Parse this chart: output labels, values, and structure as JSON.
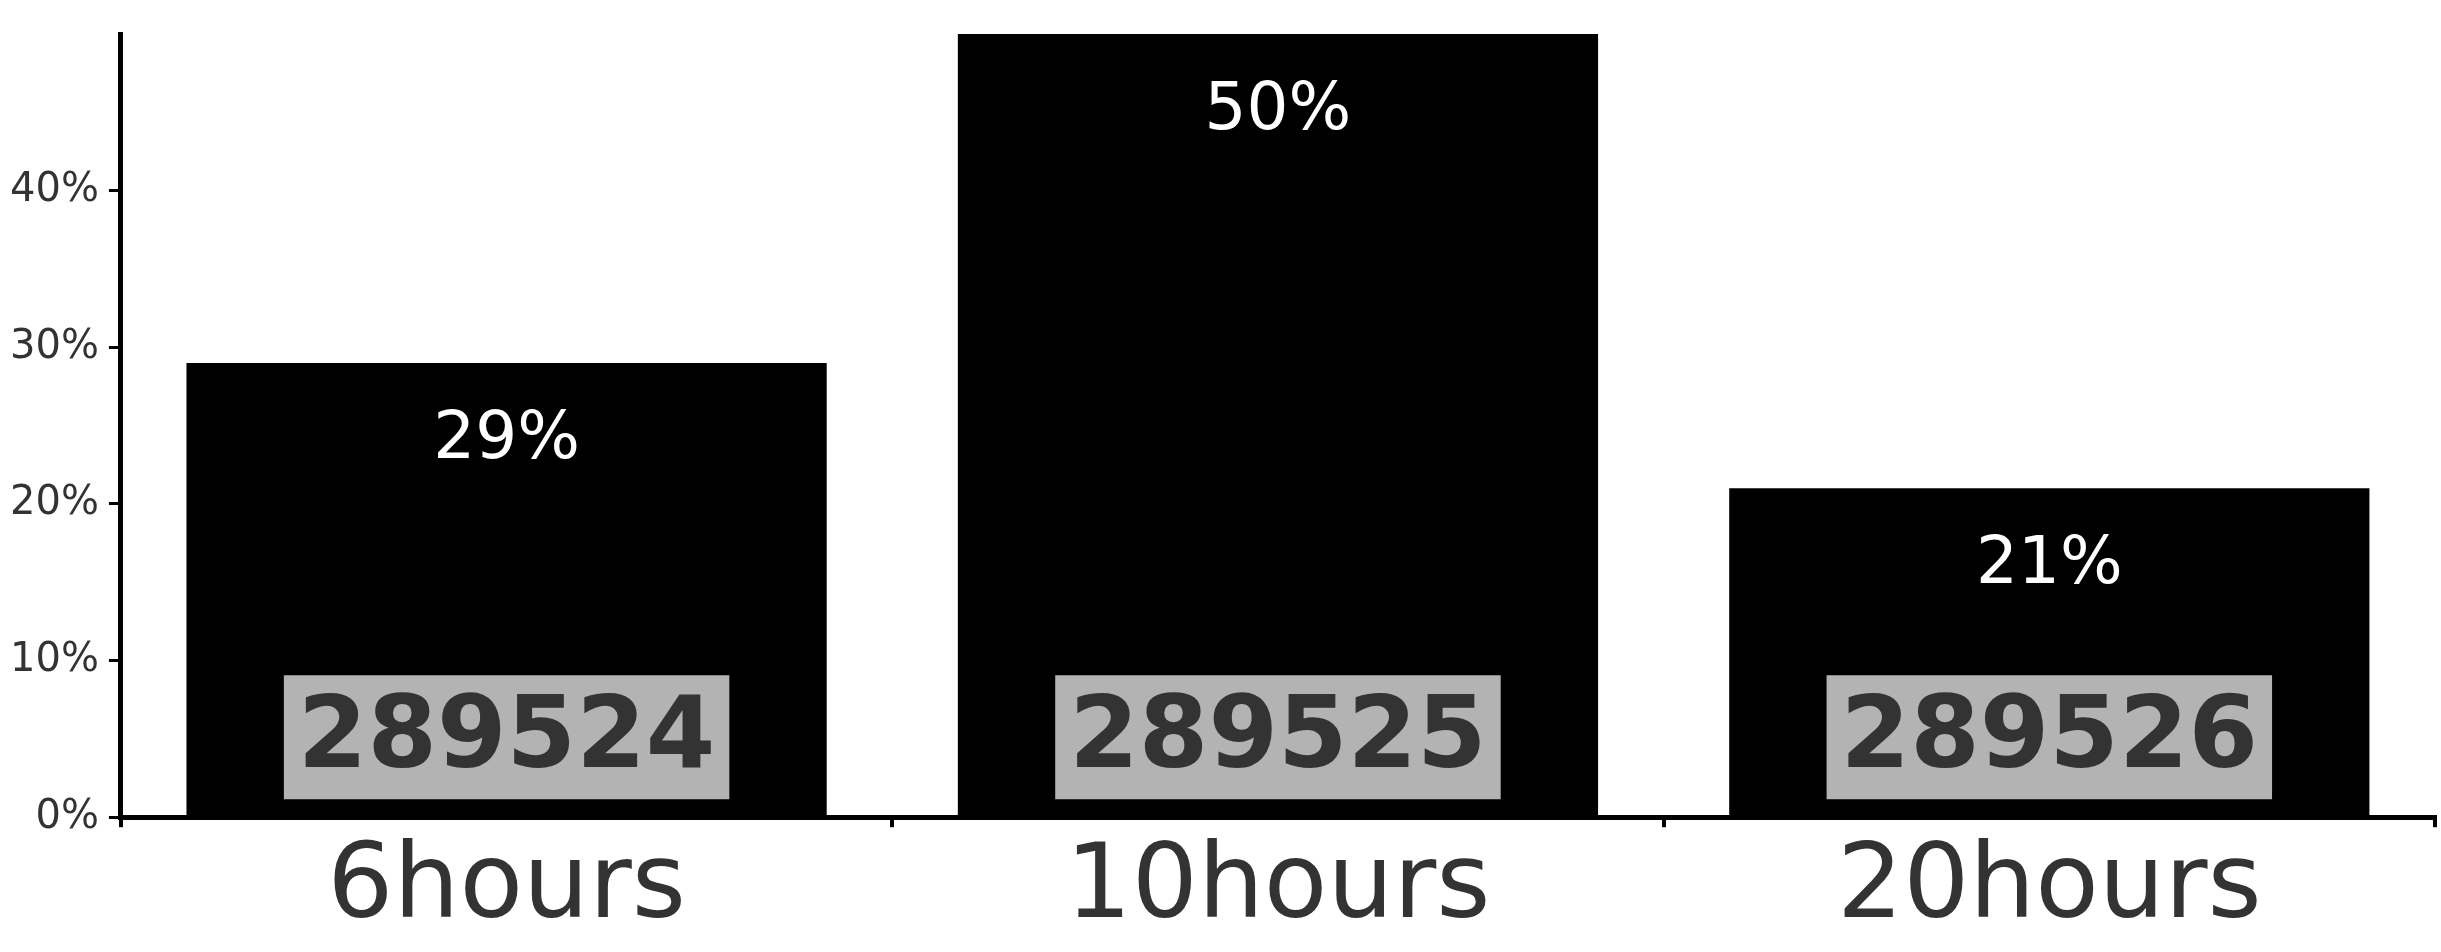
{
  "chart_data": {
    "type": "bar",
    "categories": [
      "6hours",
      "10hours",
      "20hours"
    ],
    "values": [
      29,
      50,
      21
    ],
    "color": "#000000",
    "value_labels": [
      "29%",
      "50%",
      "21%"
    ],
    "ylim": [
      0,
      50
    ],
    "yticks": [
      {
        "value": 0,
        "label": "0%"
      },
      {
        "value": 10,
        "label": "10%"
      },
      {
        "value": 20,
        "label": "20%"
      },
      {
        "value": 30,
        "label": "30%"
      },
      {
        "value": 40,
        "label": "40%"
      }
    ],
    "grid": false,
    "legend": false,
    "annotations": [
      "289524",
      "289525",
      "289526"
    ]
  }
}
